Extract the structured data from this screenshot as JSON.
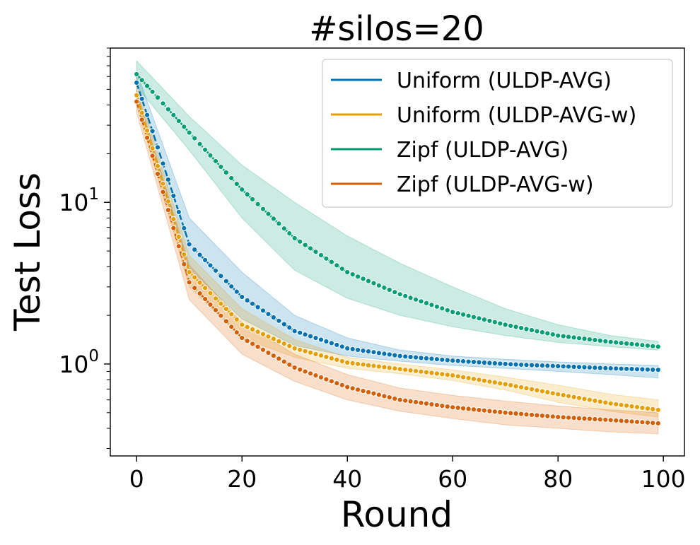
{
  "chart_data": {
    "type": "line",
    "title": "#silos=20",
    "xlabel": "Round",
    "ylabel": "Test Loss",
    "yscale": "log",
    "xlim": [
      -5,
      104
    ],
    "ylim": [
      0.27,
      90
    ],
    "xticks": [
      0,
      20,
      40,
      60,
      80,
      100
    ],
    "xtick_labels": [
      "0",
      "20",
      "40",
      "60",
      "80",
      "100"
    ],
    "yticks": [
      1,
      10
    ],
    "ytick_labels": [
      {
        "base": "10",
        "exp": "0"
      },
      {
        "base": "10",
        "exp": "1"
      }
    ],
    "grid": false,
    "legend_position": "top-right",
    "x": [
      0,
      10,
      20,
      30,
      40,
      50,
      60,
      70,
      80,
      90,
      99
    ],
    "series": [
      {
        "name": "Uniform (ULDP-AVG)",
        "color": "#0072b2",
        "values": [
          55,
          5.5,
          2.6,
          1.6,
          1.25,
          1.12,
          1.05,
          1.0,
          0.97,
          0.94,
          0.92
        ],
        "lower": [
          47,
          3.9,
          1.9,
          1.3,
          1.12,
          1.04,
          0.98,
          0.94,
          0.9,
          0.86,
          0.82
        ],
        "upper": [
          64,
          8.0,
          3.7,
          2.0,
          1.45,
          1.22,
          1.12,
          1.07,
          1.03,
          1.0,
          0.98
        ]
      },
      {
        "name": "Uniform (ULDP-AVG-w)",
        "color": "#e69f00",
        "values": [
          46,
          3.7,
          1.75,
          1.25,
          1.02,
          0.93,
          0.85,
          0.75,
          0.65,
          0.57,
          0.52
        ],
        "lower": [
          40,
          3.0,
          1.45,
          1.1,
          0.94,
          0.87,
          0.79,
          0.69,
          0.58,
          0.51,
          0.47
        ],
        "upper": [
          53,
          4.7,
          2.2,
          1.42,
          1.1,
          1.0,
          0.92,
          0.83,
          0.74,
          0.65,
          0.6
        ]
      },
      {
        "name": "Zipf (ULDP-AVG)",
        "color": "#009e73",
        "values": [
          62,
          27,
          12,
          6.0,
          3.7,
          2.7,
          2.1,
          1.75,
          1.5,
          1.37,
          1.28
        ],
        "lower": [
          52,
          21,
          8.0,
          3.8,
          2.55,
          2.0,
          1.7,
          1.5,
          1.36,
          1.28,
          1.22
        ],
        "upper": [
          75,
          34,
          17,
          10,
          6.2,
          4.2,
          3.0,
          2.2,
          1.75,
          1.5,
          1.38
        ]
      },
      {
        "name": "Zipf (ULDP-AVG-w)",
        "color": "#d55e00",
        "values": [
          42,
          3.2,
          1.45,
          0.95,
          0.72,
          0.6,
          0.54,
          0.5,
          0.47,
          0.45,
          0.43
        ],
        "lower": [
          36,
          2.5,
          1.15,
          0.78,
          0.6,
          0.51,
          0.46,
          0.42,
          0.4,
          0.38,
          0.37
        ],
        "upper": [
          49,
          4.1,
          1.8,
          1.15,
          0.86,
          0.71,
          0.64,
          0.59,
          0.55,
          0.52,
          0.5
        ]
      }
    ]
  }
}
